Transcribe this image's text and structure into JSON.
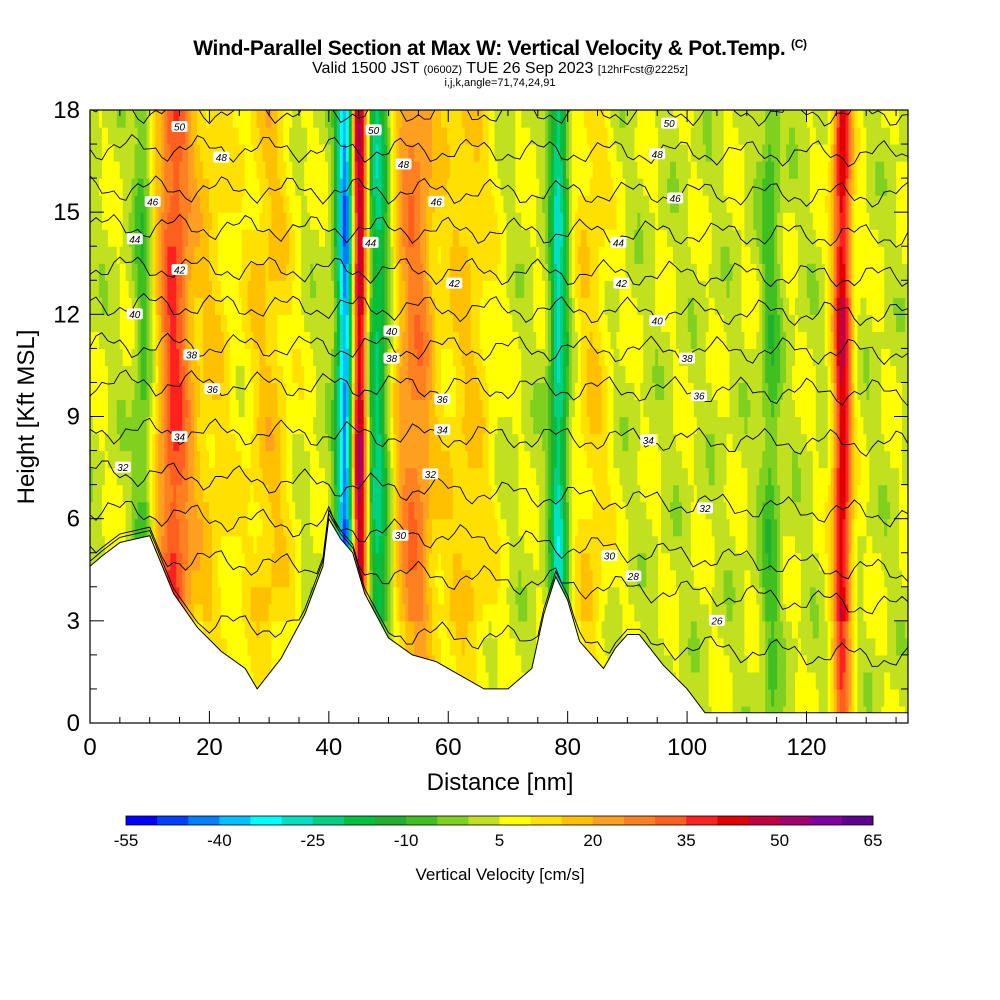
{
  "header": {
    "title": "Wind-Parallel Section at Max W: Vertical Velocity & Pot.Temp.",
    "title_mark": "(C)",
    "valid_prefix": "Valid 1500 JST",
    "valid_utc": "(0600Z)",
    "valid_date": "TUE 26 Sep 2023",
    "valid_fcst": "[12hrFcst@2225z]",
    "indices": "i,j,k,angle=71,74,24,91"
  },
  "chart_data": {
    "type": "heatmap",
    "xlabel": "Distance [nm]",
    "ylabel": "Height [Kft MSL]",
    "xlim": [
      0,
      137
    ],
    "ylim": [
      0,
      18
    ],
    "x_ticks": [
      0,
      20,
      40,
      60,
      80,
      100,
      120
    ],
    "y_ticks": [
      0,
      3,
      6,
      9,
      12,
      15,
      18
    ],
    "colorbar": {
      "title": "Vertical Velocity [cm/s]",
      "tick_labels": [
        "-55",
        "-40",
        "-25",
        "-10",
        "5",
        "20",
        "35",
        "50",
        "65"
      ],
      "tick_values": [
        -55,
        -40,
        -25,
        -10,
        5,
        20,
        35,
        50,
        65
      ],
      "colors": [
        "#0000ff",
        "#0040ff",
        "#0080ff",
        "#00c0ff",
        "#00ffff",
        "#00e0c0",
        "#00d080",
        "#00c040",
        "#20b030",
        "#40c020",
        "#80d020",
        "#c0e020",
        "#ffff00",
        "#ffe000",
        "#ffc000",
        "#ffa020",
        "#ff8020",
        "#ff6020",
        "#ff2020",
        "#e00000",
        "#c00040",
        "#a00070",
        "#8000a0",
        "#600090"
      ]
    },
    "terrain_profile": {
      "x": [
        0,
        2,
        5,
        10,
        14,
        18,
        22,
        26,
        28,
        32,
        36,
        39,
        40,
        42,
        44,
        46,
        50,
        54,
        58,
        62,
        66,
        70,
        74,
        76,
        78,
        80,
        82,
        86,
        88,
        90,
        92,
        96,
        100,
        103,
        137
      ],
      "y": [
        4.6,
        4.9,
        5.3,
        5.5,
        3.8,
        2.8,
        2.1,
        1.6,
        1.0,
        1.9,
        3.2,
        4.6,
        6.0,
        5.4,
        5.0,
        3.8,
        2.5,
        2.0,
        1.8,
        1.4,
        1.0,
        1.0,
        1.6,
        3.2,
        4.3,
        3.6,
        2.4,
        1.6,
        2.2,
        2.6,
        2.6,
        1.7,
        1.0,
        0.3,
        0.3
      ]
    },
    "updraft_bands": [
      {
        "x": 14,
        "value": 30,
        "width": 3
      },
      {
        "x": 20,
        "value": 10,
        "width": 4
      },
      {
        "x": 30,
        "value": 12,
        "width": 4
      },
      {
        "x": 45,
        "value": 60,
        "width": 1.6
      },
      {
        "x": 55,
        "value": 25,
        "width": 5
      },
      {
        "x": 64,
        "value": 10,
        "width": 4
      },
      {
        "x": 84,
        "value": 10,
        "width": 3
      },
      {
        "x": 126,
        "value": 40,
        "width": 1.6
      }
    ],
    "downdraft_bands": [
      {
        "x": 9,
        "value": -12,
        "width": 1.6
      },
      {
        "x": 43,
        "value": -55,
        "width": 1.6
      },
      {
        "x": 48,
        "value": -30,
        "width": 2.4
      },
      {
        "x": 58,
        "value": -8,
        "width": 2.5
      },
      {
        "x": 78.5,
        "value": -30,
        "width": 1.5
      },
      {
        "x": 114,
        "value": -12,
        "width": 1.6
      }
    ],
    "theta_contours": [
      {
        "level": 26,
        "label": "26",
        "y_left": 3.1,
        "y_right": 1.9
      },
      {
        "level": 28,
        "label": "28",
        "y_left": 5.0,
        "y_right": 3.4
      },
      {
        "level": 30,
        "label": "30",
        "y_left": 6.3,
        "y_right": 4.4
      },
      {
        "level": 32,
        "label": "32",
        "y_left": 7.4,
        "y_right": 6.1
      },
      {
        "level": 34,
        "label": "34",
        "y_left": 8.6,
        "y_right": 8.2
      },
      {
        "level": 36,
        "label": "36",
        "y_left": 10.0,
        "y_right": 9.7
      },
      {
        "level": 38,
        "label": "38",
        "y_left": 11.1,
        "y_right": 10.9
      },
      {
        "level": 40,
        "label": "40",
        "y_left": 12.3,
        "y_right": 12.0
      },
      {
        "level": 42,
        "label": "42",
        "y_left": 13.4,
        "y_right": 13.1
      },
      {
        "level": 44,
        "label": "44",
        "y_left": 14.6,
        "y_right": 14.3
      },
      {
        "level": 46,
        "label": "46",
        "y_left": 15.7,
        "y_right": 15.5
      },
      {
        "level": 48,
        "label": "48",
        "y_left": 16.9,
        "y_right": 16.7
      },
      {
        "level": 50,
        "label": "50",
        "y_left": 18.0,
        "y_right": 17.9
      }
    ],
    "contour_label_positions": [
      {
        "label": "50",
        "x": 15,
        "y": 17.5
      },
      {
        "label": "50",
        "x": 47.5,
        "y": 17.4
      },
      {
        "label": "50",
        "x": 97,
        "y": 17.6
      },
      {
        "label": "48",
        "x": 22,
        "y": 16.6
      },
      {
        "label": "48",
        "x": 52.5,
        "y": 16.4
      },
      {
        "label": "48",
        "x": 95,
        "y": 16.7
      },
      {
        "label": "46",
        "x": 10.5,
        "y": 15.3
      },
      {
        "label": "46",
        "x": 58,
        "y": 15.3
      },
      {
        "label": "46",
        "x": 98,
        "y": 15.4
      },
      {
        "label": "44",
        "x": 7.5,
        "y": 14.2
      },
      {
        "label": "44",
        "x": 47,
        "y": 14.1
      },
      {
        "label": "44",
        "x": 88.5,
        "y": 14.1
      },
      {
        "label": "42",
        "x": 15,
        "y": 13.3
      },
      {
        "label": "42",
        "x": 61,
        "y": 12.9
      },
      {
        "label": "42",
        "x": 89,
        "y": 12.9
      },
      {
        "label": "40",
        "x": 7.5,
        "y": 12.0
      },
      {
        "label": "40",
        "x": 50.5,
        "y": 11.5
      },
      {
        "label": "40",
        "x": 95,
        "y": 11.8
      },
      {
        "label": "38",
        "x": 17,
        "y": 10.8
      },
      {
        "label": "38",
        "x": 50.5,
        "y": 10.7
      },
      {
        "label": "38",
        "x": 100,
        "y": 10.7
      },
      {
        "label": "36",
        "x": 20.5,
        "y": 9.8
      },
      {
        "label": "36",
        "x": 59,
        "y": 9.5
      },
      {
        "label": "36",
        "x": 102,
        "y": 9.6
      },
      {
        "label": "34",
        "x": 15,
        "y": 8.4
      },
      {
        "label": "34",
        "x": 59,
        "y": 8.6
      },
      {
        "label": "34",
        "x": 93.5,
        "y": 8.3
      },
      {
        "label": "32",
        "x": 5.5,
        "y": 7.5
      },
      {
        "label": "32",
        "x": 57,
        "y": 7.3
      },
      {
        "label": "32",
        "x": 103,
        "y": 6.3
      },
      {
        "label": "30",
        "x": 52,
        "y": 5.5
      },
      {
        "label": "30",
        "x": 87,
        "y": 4.9
      },
      {
        "label": "28",
        "x": 91,
        "y": 4.3
      },
      {
        "label": "26",
        "x": 105,
        "y": 3.0
      }
    ]
  }
}
